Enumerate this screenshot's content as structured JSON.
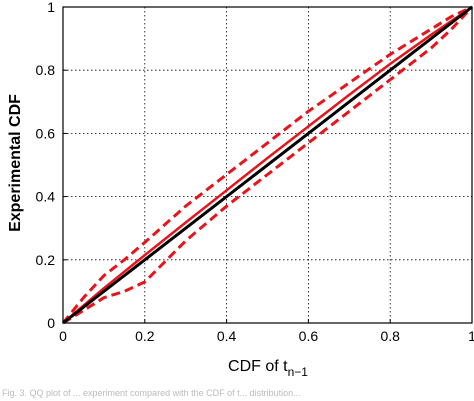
{
  "chart_data": {
    "type": "line",
    "xlabel": "CDF of t",
    "xlabel_subscript": "n−1",
    "ylabel": "Experimental CDF",
    "xlim": [
      0,
      1
    ],
    "ylim": [
      0,
      1
    ],
    "x_ticks": [
      "0",
      "0.2",
      "0.4",
      "0.6",
      "0.8",
      "1"
    ],
    "y_ticks": [
      "0",
      "0.2",
      "0.4",
      "0.6",
      "0.8",
      "1"
    ],
    "grid": true,
    "colors": {
      "reference": "#000000",
      "series": "#e8141b"
    },
    "series": [
      {
        "style": "solid",
        "color": "#000000",
        "x": [
          0,
          1
        ],
        "y": [
          0,
          1
        ]
      },
      {
        "style": "solid",
        "color": "#e8141b",
        "x": [
          0,
          0.1,
          0.2,
          0.3,
          0.4,
          0.5,
          0.6,
          0.7,
          0.8,
          0.9,
          1
        ],
        "y": [
          0,
          0.11,
          0.215,
          0.318,
          0.42,
          0.522,
          0.622,
          0.722,
          0.82,
          0.912,
          1
        ]
      },
      {
        "style": "dashed",
        "color": "#e8141b",
        "x": [
          0,
          0.05,
          0.1,
          0.15,
          0.2,
          0.3,
          0.4,
          0.5,
          0.6,
          0.7,
          0.8,
          0.9,
          0.95,
          1
        ],
        "y": [
          0,
          0.08,
          0.15,
          0.2,
          0.255,
          0.37,
          0.47,
          0.57,
          0.67,
          0.76,
          0.85,
          0.93,
          0.97,
          1
        ]
      },
      {
        "style": "dashed",
        "color": "#e8141b",
        "x": [
          0,
          0.05,
          0.1,
          0.15,
          0.2,
          0.3,
          0.4,
          0.5,
          0.6,
          0.7,
          0.8,
          0.9,
          0.95,
          1
        ],
        "y": [
          0,
          0.04,
          0.08,
          0.1,
          0.13,
          0.26,
          0.37,
          0.47,
          0.57,
          0.67,
          0.77,
          0.87,
          0.93,
          1
        ]
      }
    ]
  },
  "caption": {
    "text": "Fig. 3. QQ plot of ... experiment compared with the CDF of t... distribution..."
  }
}
